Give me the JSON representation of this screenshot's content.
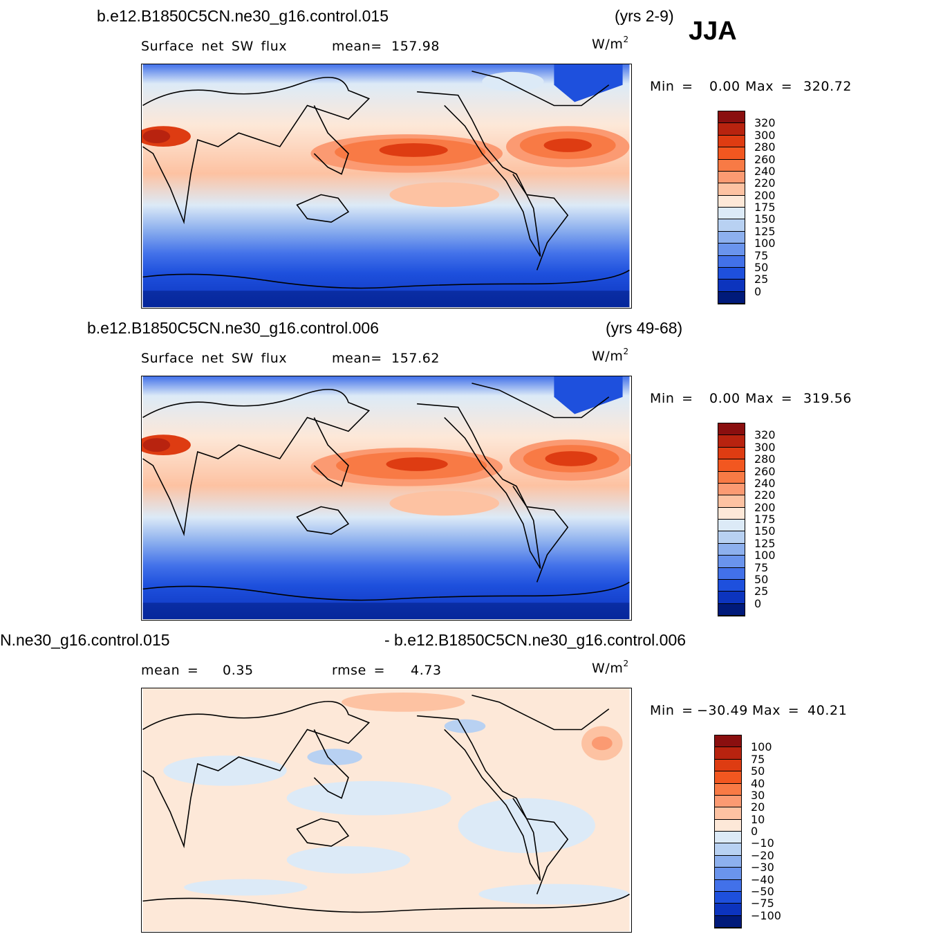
{
  "season": "JJA",
  "units": "W/m",
  "units_sup": "2",
  "panels": [
    {
      "case_left": "b.e12.B1850C5CN.ne30_g16.control.015",
      "case_right": "(yrs 2-9)",
      "var_label": "Surface net SW flux",
      "stat1_label": "mean=",
      "stat1_value": "157.98",
      "min_label": "Min =",
      "min_value": "0.00",
      "max_label": "Max =",
      "max_value": "320.72",
      "levels": [
        "320",
        "300",
        "280",
        "260",
        "240",
        "220",
        "200",
        "175",
        "150",
        "125",
        "100",
        "75",
        "50",
        "25",
        "0"
      ],
      "colors": [
        "#8a0f0f",
        "#b8230f",
        "#de3c12",
        "#f25720",
        "#f87a45",
        "#fb9a72",
        "#fdc2a2",
        "#fde8d8",
        "#dceaf7",
        "#b8d1f2",
        "#8db0ee",
        "#6a94ed",
        "#4271e9",
        "#1e50dd",
        "#0c34be",
        "#001a7a"
      ]
    },
    {
      "case_left": "b.e12.B1850C5CN.ne30_g16.control.006",
      "case_right": "(yrs 49-68)",
      "var_label": "Surface net SW flux",
      "stat1_label": "mean=",
      "stat1_value": "157.62",
      "min_label": "Min =",
      "min_value": "0.00",
      "max_label": "Max =",
      "max_value": "319.56",
      "levels": [
        "320",
        "300",
        "280",
        "260",
        "240",
        "220",
        "200",
        "175",
        "150",
        "125",
        "100",
        "75",
        "50",
        "25",
        "0"
      ],
      "colors": [
        "#8a0f0f",
        "#b8230f",
        "#de3c12",
        "#f25720",
        "#f87a45",
        "#fb9a72",
        "#fdc2a2",
        "#fde8d8",
        "#dceaf7",
        "#b8d1f2",
        "#8db0ee",
        "#6a94ed",
        "#4271e9",
        "#1e50dd",
        "#0c34be",
        "#001a7a"
      ]
    },
    {
      "case_left": "N.ne30_g16.control.015",
      "case_right": "- b.e12.B1850C5CN.ne30_g16.control.006",
      "stat1_label": "mean =",
      "stat1_value": "0.35",
      "stat2_label": "rmse =",
      "stat2_value": "4.73",
      "min_label": "Min =",
      "min_value": "−30.49",
      "max_label": "Max =",
      "max_value": "40.21",
      "levels": [
        "100",
        "75",
        "50",
        "40",
        "30",
        "20",
        "10",
        "0",
        "−10",
        "−20",
        "−30",
        "−40",
        "−50",
        "−75",
        "−100"
      ],
      "colors": [
        "#8a0f0f",
        "#b8230f",
        "#de3c12",
        "#f25720",
        "#f87a45",
        "#fb9a72",
        "#fdc2a2",
        "#fde8d8",
        "#dceaf7",
        "#b8d1f2",
        "#8db0ee",
        "#6a94ed",
        "#4271e9",
        "#1e50dd",
        "#0c34be",
        "#001a7a"
      ]
    }
  ]
}
